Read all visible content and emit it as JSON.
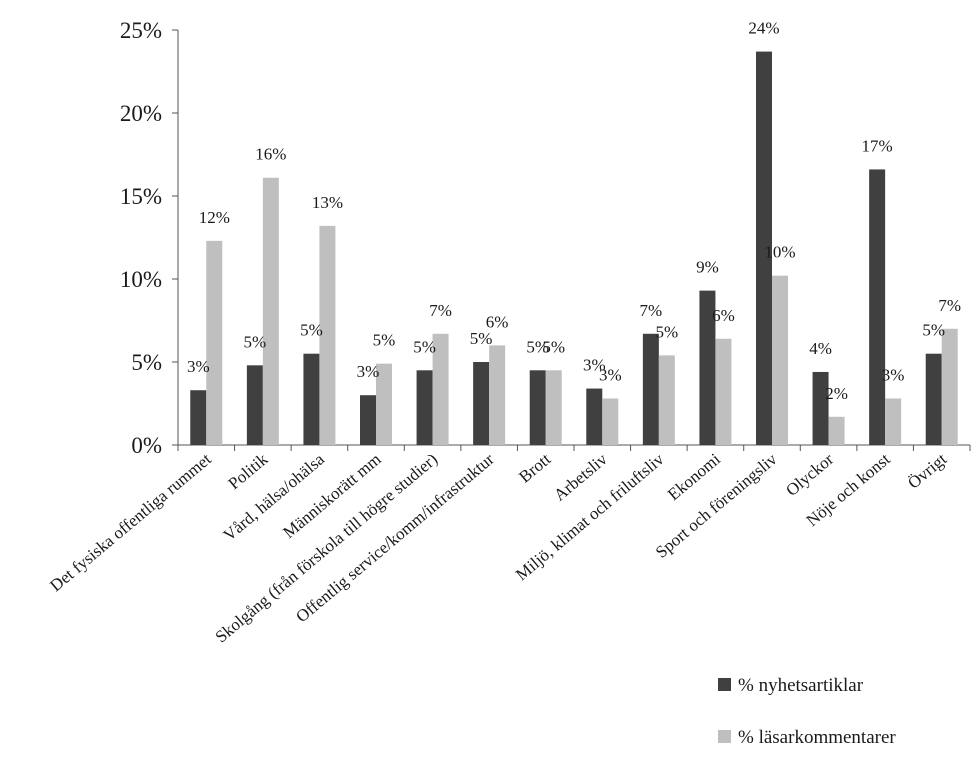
{
  "chart_data": {
    "type": "bar",
    "categories": [
      "Det fysiska offentliga rummet",
      "Politik",
      "Vård, hälsa/ohälsa",
      "Människorätt mm",
      "Skolgång (från förskola till högre studier)",
      "Offentlig service/komm/infrastruktur",
      "Brott",
      "Arbetsliv",
      "Miljö, klimat och friluftsliv",
      "Ekonomi",
      "Sport och föreningsliv",
      "Olyckor",
      "Nöje och konst",
      "Övrigt"
    ],
    "series": [
      {
        "name": "% nyhetsartiklar",
        "color": "#404040",
        "values": [
          3.3,
          4.8,
          5.5,
          3.0,
          4.5,
          5.0,
          4.5,
          3.4,
          6.7,
          9.3,
          23.7,
          4.4,
          16.6,
          5.5
        ],
        "labels": [
          "3%",
          "5%",
          "5%",
          "3%",
          "5%",
          "5%",
          "5%",
          "3%",
          "7%",
          "9%",
          "24%",
          "4%",
          "17%",
          "5%"
        ]
      },
      {
        "name": "% läsarkommentarer",
        "color": "#bfbfbf",
        "values": [
          12.3,
          16.1,
          13.2,
          4.9,
          6.7,
          6.0,
          4.5,
          2.8,
          5.4,
          6.4,
          10.2,
          1.7,
          2.8,
          7.0
        ],
        "labels": [
          "12%",
          "16%",
          "13%",
          "5%",
          "7%",
          "6%",
          "5%",
          "3%",
          "5%",
          "6%",
          "10%",
          "2%",
          "3%",
          "7%"
        ]
      }
    ],
    "ylim": [
      0,
      25
    ],
    "yticks": [
      0,
      5,
      10,
      15,
      20,
      25
    ],
    "ytick_labels": [
      "0%",
      "5%",
      "10%",
      "15%",
      "20%",
      "25%"
    ],
    "grid": false,
    "legend_position": "bottom-right"
  }
}
